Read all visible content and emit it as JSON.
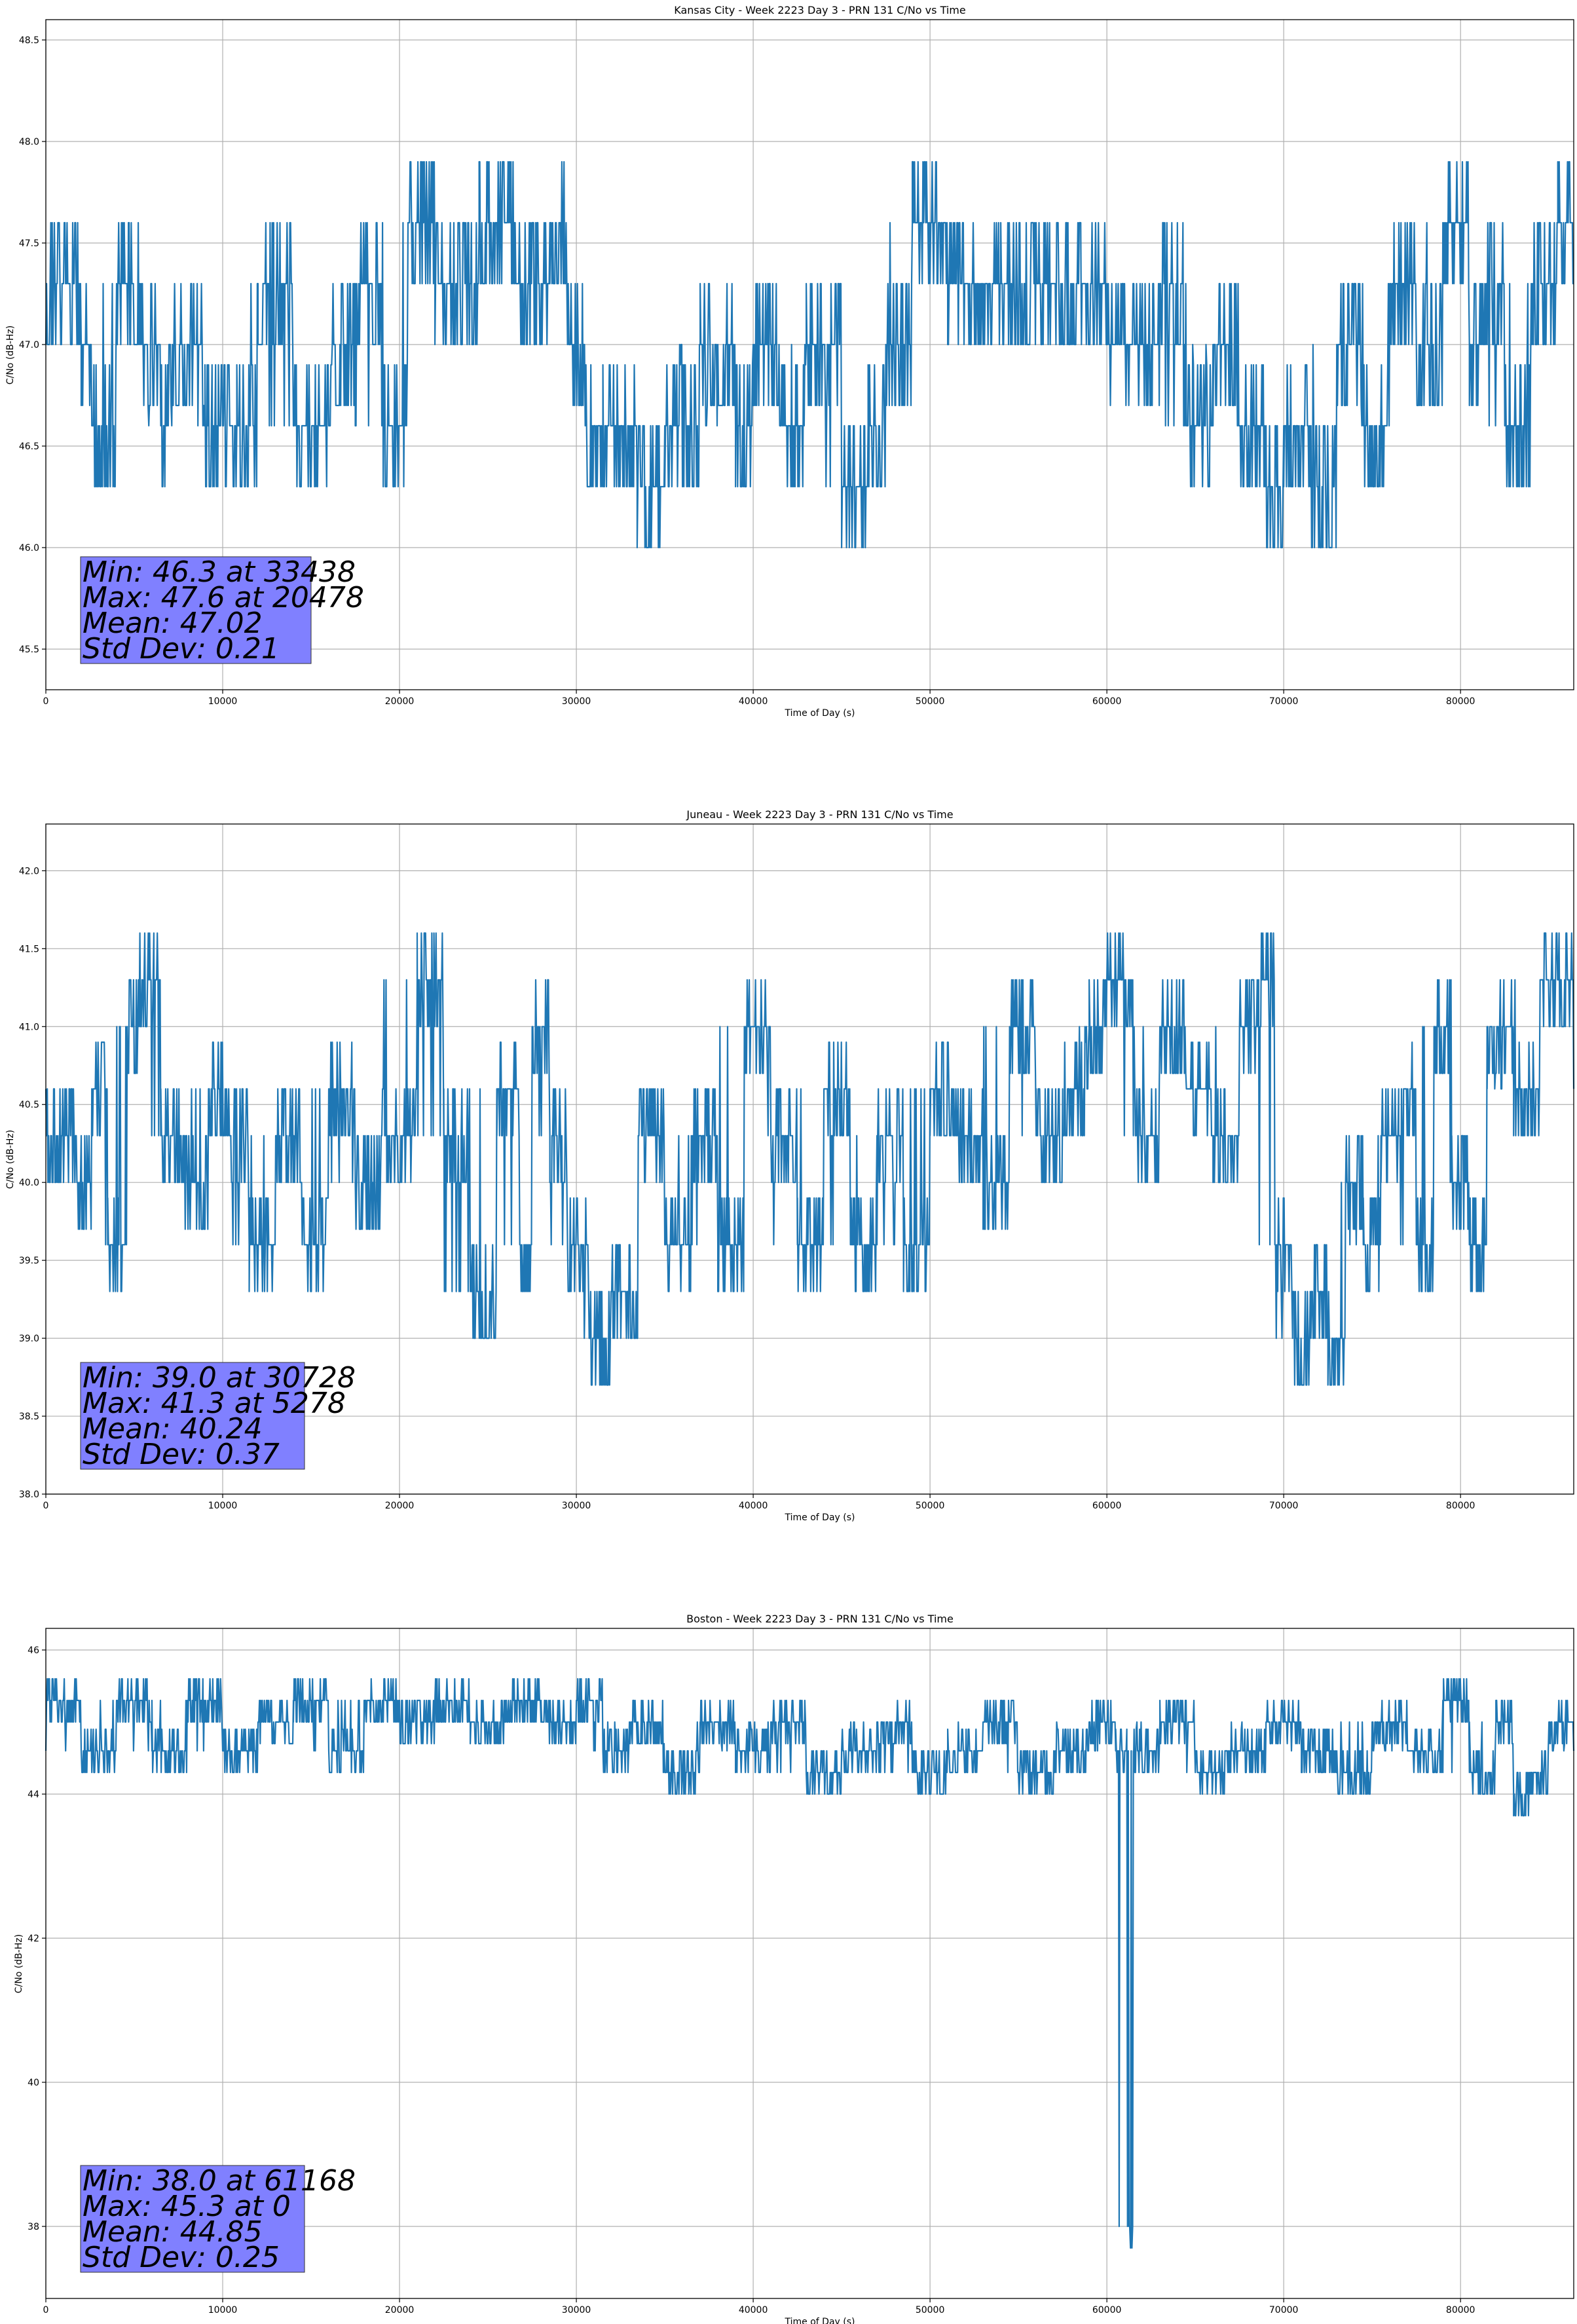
{
  "chart_data": [
    {
      "type": "line",
      "title": "Kansas City - Week 2223 Day 3 - PRN 131 C/No vs Time",
      "xlabel": "Time of Day (s)",
      "ylabel": "C/No (dB-Hz)",
      "xlim": [
        0,
        86400
      ],
      "ylim": [
        45.3,
        48.6
      ],
      "xticks": [
        0,
        10000,
        20000,
        30000,
        40000,
        50000,
        60000,
        70000,
        80000
      ],
      "yticks": [
        45.5,
        46.0,
        46.5,
        47.0,
        47.5,
        48.0,
        48.5
      ],
      "grid": true,
      "series": [
        {
          "color": "#1f77b4",
          "x": [
            0,
            2000,
            2600,
            4000,
            5500,
            6500,
            7000,
            9000,
            10800,
            12000,
            14000,
            16200,
            17500,
            19000,
            20478,
            22000,
            24500,
            26500,
            28500,
            29500,
            30500,
            31500,
            33438,
            35000,
            37000,
            39000,
            40000,
            41500,
            43000,
            45000,
            46500,
            47500,
            49000,
            51000,
            54000,
            57000,
            60000,
            63000,
            64500,
            66000,
            67500,
            69000,
            70000,
            71500,
            73000,
            74500,
            76000,
            77500,
            79000,
            80500,
            81500,
            82500,
            84000,
            85500,
            86400
          ],
          "lines": {
            "_": "placeholder"
          },
          "y": [
            47.3,
            47.0,
            46.6,
            47.3,
            47.0,
            46.6,
            47.0,
            46.6,
            46.6,
            47.3,
            46.6,
            47.0,
            47.3,
            46.6,
            47.6,
            47.3,
            47.6,
            47.3,
            47.6,
            47.0,
            46.6,
            46.6,
            46.3,
            46.6,
            47.0,
            46.6,
            47.0,
            46.6,
            47.0,
            46.3,
            46.6,
            47.0,
            47.6,
            47.3,
            47.3,
            47.3,
            47.0,
            47.3,
            46.6,
            47.0,
            46.6,
            46.3,
            46.6,
            46.3,
            47.0,
            46.6,
            47.3,
            47.0,
            47.6,
            47.0,
            47.3,
            46.6,
            47.3,
            47.6,
            47.3
          ]
        }
      ],
      "annotation": {
        "lines": [
          "Min: 46.3 at 33438",
          "Max: 47.6 at 20478",
          "Mean: 47.02",
          "Std Dev: 0.21"
        ],
        "box_color": "#8080ff"
      }
    },
    {
      "type": "line",
      "title": "Juneau - Week 2223 Day 3 - PRN 131 C/No vs Time",
      "xlabel": "Time of Day (s)",
      "ylabel": "C/No (dB-Hz)",
      "xlim": [
        0,
        86400
      ],
      "ylim": [
        38.0,
        42.3
      ],
      "xticks": [
        0,
        10000,
        20000,
        30000,
        40000,
        50000,
        60000,
        70000,
        80000
      ],
      "yticks": [
        38.0,
        38.5,
        39.0,
        39.5,
        40.0,
        40.5,
        41.0,
        41.5,
        42.0
      ],
      "grid": true,
      "series": [
        {
          "color": "#1f77b4",
          "x": [
            0,
            1800,
            2600,
            3500,
            4600,
            5278,
            6500,
            7800,
            9200,
            10300,
            11500,
            13000,
            14500,
            16000,
            17500,
            19000,
            21000,
            22500,
            24000,
            25500,
            26800,
            27500,
            28500,
            29500,
            30728,
            32000,
            33500,
            35000,
            36500,
            38000,
            39500,
            41000,
            42500,
            44000,
            45500,
            47000,
            48500,
            50000,
            51500,
            53000,
            54500,
            56000,
            57500,
            59000,
            60000,
            61500,
            63000,
            64500,
            66000,
            67500,
            68500,
            69500,
            70500,
            71500,
            72500,
            73500,
            74500,
            75500,
            76500,
            77500,
            78500,
            79500,
            80500,
            81500,
            83000,
            84500,
            86400
          ],
          "y": [
            40.3,
            40.0,
            40.6,
            39.6,
            41.0,
            41.3,
            40.3,
            40.0,
            40.6,
            40.3,
            39.6,
            40.3,
            39.6,
            40.6,
            40.0,
            40.3,
            41.3,
            40.3,
            39.3,
            40.6,
            39.6,
            41.0,
            40.3,
            39.6,
            39.0,
            39.3,
            40.3,
            39.6,
            40.3,
            39.6,
            41.0,
            40.3,
            39.6,
            40.6,
            39.6,
            40.3,
            39.6,
            40.6,
            40.3,
            40.0,
            41.0,
            40.3,
            40.6,
            41.0,
            41.3,
            40.3,
            41.0,
            40.6,
            40.3,
            41.0,
            41.3,
            39.6,
            39.0,
            39.3,
            39.0,
            40.0,
            39.6,
            40.3,
            40.6,
            39.6,
            41.0,
            40.0,
            39.6,
            41.0,
            40.6,
            41.3,
            40.6
          ]
        }
      ],
      "annotation": {
        "lines": [
          "Min: 39.0 at 30728",
          "Max: 41.3 at 5278",
          "Mean: 40.24",
          "Std Dev: 0.37"
        ],
        "box_color": "#8080ff"
      }
    },
    {
      "type": "line",
      "title": "Boston - Week 2223 Day 3 - PRN 131 C/No vs Time",
      "xlabel": "Time of Day (s)",
      "ylabel": "C/No (dB-Hz)",
      "xlim": [
        0,
        86400
      ],
      "ylim": [
        37.0,
        46.3
      ],
      "xticks": [
        0,
        10000,
        20000,
        30000,
        40000,
        50000,
        60000,
        70000,
        80000
      ],
      "yticks": [
        38,
        40,
        42,
        44,
        46
      ],
      "grid": true,
      "series": [
        {
          "color": "#1f77b4",
          "x": [
            0,
            2000,
            4000,
            6000,
            8000,
            10000,
            12000,
            14000,
            16000,
            18000,
            20000,
            22000,
            24000,
            26000,
            28000,
            30000,
            31500,
            33000,
            35000,
            37000,
            39000,
            41000,
            43000,
            45000,
            47000,
            49000,
            51000,
            53000,
            55000,
            57000,
            59000,
            60500,
            61168,
            61500,
            63000,
            65000,
            67000,
            69000,
            71000,
            73000,
            75000,
            77000,
            79000,
            80500,
            82000,
            83000,
            84000,
            85000,
            86400
          ],
          "y": [
            45.3,
            44.6,
            45.3,
            44.6,
            45.3,
            44.6,
            45.0,
            45.3,
            44.6,
            45.3,
            45.0,
            45.3,
            45.0,
            45.3,
            45.0,
            45.3,
            44.6,
            45.0,
            44.3,
            45.0,
            44.6,
            45.0,
            44.3,
            44.6,
            45.0,
            44.3,
            44.6,
            45.0,
            44.3,
            44.6,
            45.0,
            44.6,
            38.0,
            44.6,
            45.0,
            44.3,
            44.6,
            45.0,
            44.6,
            44.3,
            45.0,
            44.6,
            45.3,
            44.3,
            45.0,
            44.0,
            44.3,
            45.0,
            44.6
          ]
        }
      ],
      "annotation": {
        "lines": [
          "Min: 38.0 at 61168",
          "Max: 45.3 at 0",
          "Mean: 44.85",
          "Std Dev: 0.25"
        ],
        "box_color": "#8080ff"
      }
    }
  ]
}
